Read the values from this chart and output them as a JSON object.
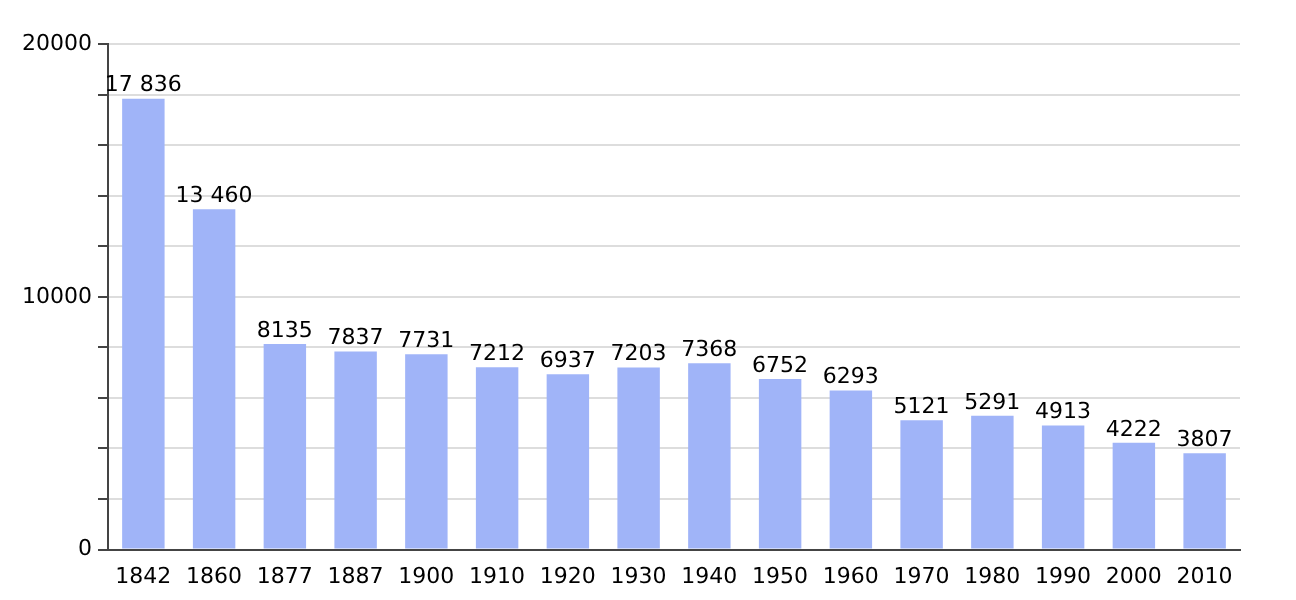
{
  "chart_data": {
    "type": "bar",
    "categories": [
      "1842",
      "1860",
      "1877",
      "1887",
      "1900",
      "1910",
      "1920",
      "1930",
      "1940",
      "1950",
      "1960",
      "1970",
      "1980",
      "1990",
      "2000",
      "2010"
    ],
    "values": [
      17836,
      13460,
      8135,
      7837,
      7731,
      7212,
      6937,
      7203,
      7368,
      6752,
      6293,
      5121,
      5291,
      4913,
      4222,
      3807
    ],
    "value_labels": [
      "17 836",
      "13 460",
      "8135",
      "7837",
      "7731",
      "7212",
      "6937",
      "7203",
      "7368",
      "6752",
      "6293",
      "5121",
      "5291",
      "4913",
      "4222",
      "3807"
    ],
    "color": "#a0b4f8",
    "ylim": [
      0,
      20000
    ],
    "yticks": [
      0,
      {
        "value": 2000,
        "label": null
      },
      {
        "value": 4000,
        "label": null
      },
      {
        "value": 6000,
        "label": null
      },
      {
        "value": 8000,
        "label": null
      },
      10000,
      {
        "value": 12000,
        "label": null
      },
      {
        "value": 14000,
        "label": null
      },
      {
        "value": 16000,
        "label": null
      },
      {
        "value": 18000,
        "label": null
      },
      20000
    ],
    "grid": "y"
  }
}
